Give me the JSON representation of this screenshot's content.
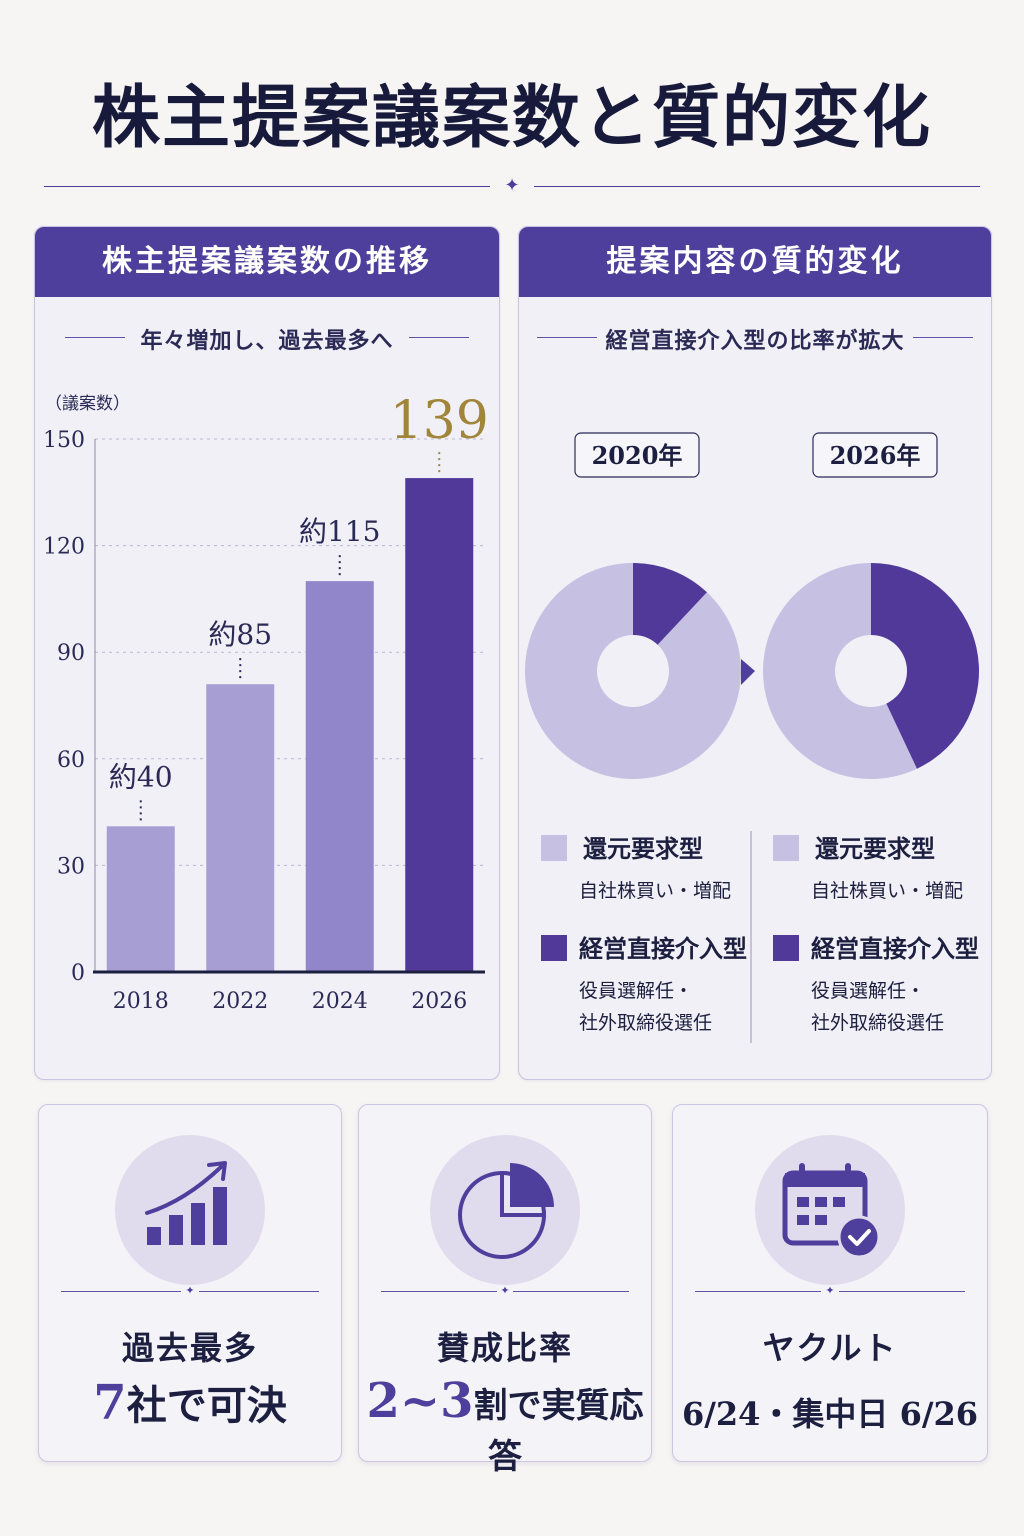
{
  "title": "株主提案議案数と質的変化",
  "left_panel": {
    "header": "株主提案議案数の推移",
    "subtitle": "年々増加し、過去最多へ"
  },
  "right_panel": {
    "header": "提案内容の質的変化",
    "subtitle": "経営直接介入型の比率が拡大"
  },
  "chart_data": [
    {
      "type": "bar",
      "ylabel": "（議案数）",
      "ylim": [
        0,
        150
      ],
      "yticks": [
        0,
        30,
        60,
        90,
        120,
        150
      ],
      "categories": [
        "2018",
        "2022",
        "2024",
        "2026"
      ],
      "values": [
        41,
        81,
        110,
        139
      ],
      "data_labels": [
        "約40",
        "約85",
        "約115",
        "139"
      ],
      "grid": true,
      "colors": [
        "#a79fd4",
        "#a79fd4",
        "#9286cb",
        "#51399a"
      ]
    },
    {
      "type": "pie",
      "variant": "donut",
      "pies": [
        {
          "label": "2020年",
          "slices": [
            {
              "name": "還元要求型",
              "value": 88
            },
            {
              "name": "経営直接介入型",
              "value": 12
            }
          ]
        },
        {
          "label": "2026年",
          "slices": [
            {
              "name": "還元要求型",
              "value": 57
            },
            {
              "name": "経営直接介入型",
              "value": 43
            }
          ]
        }
      ],
      "colors": {
        "還元要求型": "#c6c0e3",
        "経営直接介入型": "#51399a"
      }
    }
  ],
  "legend": {
    "left": [
      {
        "name": "還元要求型",
        "desc": [
          "自社株買い・増配"
        ]
      },
      {
        "name": "経営直接介入型",
        "desc": [
          "役員選解任・",
          "社外取締役選任"
        ]
      }
    ],
    "right": [
      {
        "name": "還元要求型",
        "desc": [
          "自社株買い・増配"
        ]
      },
      {
        "name": "経営直接介入型",
        "desc": [
          "役員選解任・",
          "社外取締役選任"
        ]
      }
    ]
  },
  "cards": [
    {
      "icon": "bar-growth-icon",
      "line1": "過去最多",
      "line2_accent": "7",
      "line2_rest": "社で可決"
    },
    {
      "icon": "pie-icon",
      "line1": "賛成比率",
      "line2_accent": "2~3",
      "line2_rest": "割で実質応答"
    },
    {
      "icon": "calendar-check-icon",
      "line1": "ヤクルト",
      "line2_accent": "",
      "line2_rest": "6/24・集中日 6/26"
    }
  ],
  "colors": {
    "primary": "#4f3f9c",
    "light": "#c6c0e3",
    "accent_gold": "#a0853a"
  }
}
